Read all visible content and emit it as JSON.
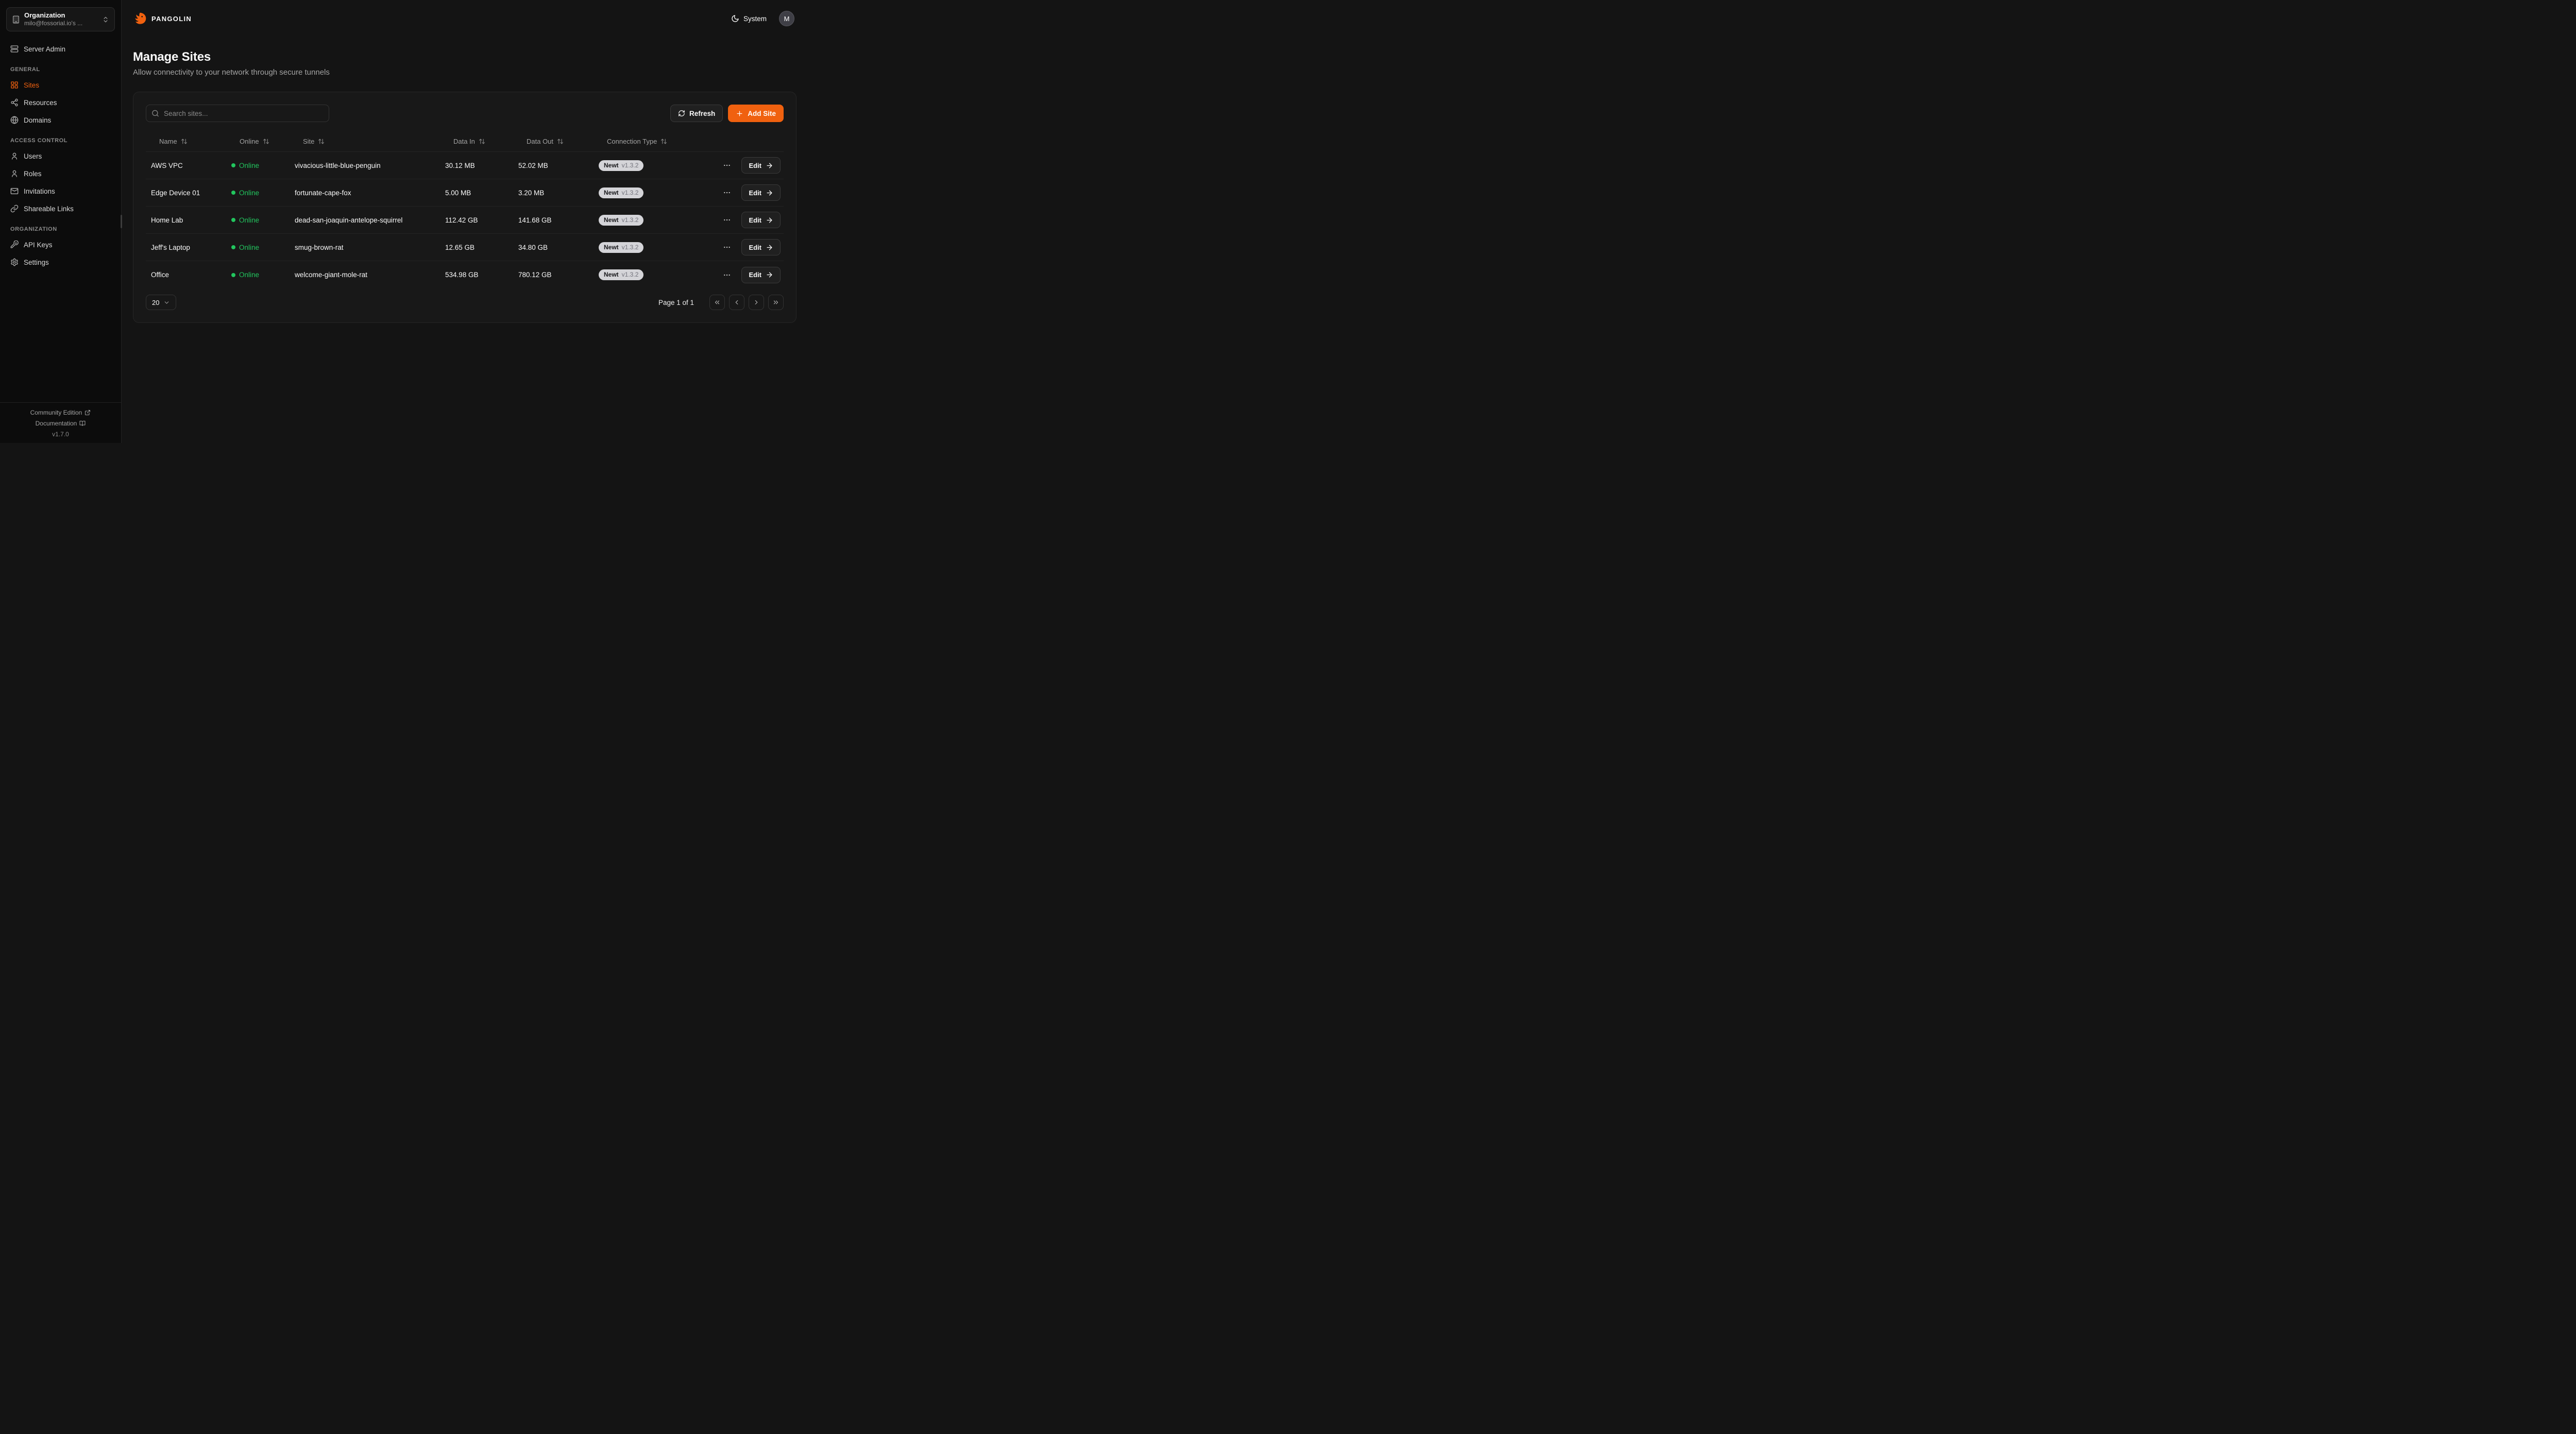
{
  "colors": {
    "accent": "#f0610f",
    "online": "#22c55e"
  },
  "brand": {
    "name": "PANGOLIN"
  },
  "sidebar": {
    "org": {
      "title": "Organization",
      "subtitle": "milo@fossorial.io's ..."
    },
    "sections": [
      {
        "label": "",
        "items": [
          {
            "label": "Server Admin",
            "icon": "server",
            "active": false
          }
        ]
      },
      {
        "label": "GENERAL",
        "items": [
          {
            "label": "Sites",
            "icon": "grid",
            "active": true
          },
          {
            "label": "Resources",
            "icon": "waypoints",
            "active": false
          },
          {
            "label": "Domains",
            "icon": "globe",
            "active": false
          }
        ]
      },
      {
        "label": "ACCESS CONTROL",
        "items": [
          {
            "label": "Users",
            "icon": "user",
            "active": false
          },
          {
            "label": "Roles",
            "icon": "user",
            "active": false
          },
          {
            "label": "Invitations",
            "icon": "mail",
            "active": false
          },
          {
            "label": "Shareable Links",
            "icon": "link",
            "active": false
          }
        ]
      },
      {
        "label": "ORGANIZATION",
        "items": [
          {
            "label": "API Keys",
            "icon": "key",
            "active": false
          },
          {
            "label": "Settings",
            "icon": "settings",
            "active": false
          }
        ]
      }
    ],
    "footer": {
      "community_label": "Community Edition",
      "docs_label": "Documentation",
      "version": "v1.7.0"
    }
  },
  "topbar": {
    "theme_label": "System",
    "avatar_initial": "M"
  },
  "page": {
    "title": "Manage Sites",
    "subtitle": "Allow connectivity to your network through secure tunnels"
  },
  "toolbar": {
    "search_placeholder": "Search sites...",
    "refresh_label": "Refresh",
    "add_site_label": "Add Site"
  },
  "table": {
    "columns": [
      "Name",
      "Online",
      "Site",
      "Data In",
      "Data Out",
      "Connection Type"
    ],
    "rows": [
      {
        "name": "AWS VPC",
        "status": "Online",
        "site": "vivacious-little-blue-penguin",
        "data_in": "30.12 MB",
        "data_out": "52.02 MB",
        "conn_name": "Newt",
        "conn_version": "v1.3.2",
        "edit_label": "Edit"
      },
      {
        "name": "Edge Device 01",
        "status": "Online",
        "site": "fortunate-cape-fox",
        "data_in": "5.00 MB",
        "data_out": "3.20 MB",
        "conn_name": "Newt",
        "conn_version": "v1.3.2",
        "edit_label": "Edit"
      },
      {
        "name": "Home Lab",
        "status": "Online",
        "site": "dead-san-joaquin-antelope-squirrel",
        "data_in": "112.42 GB",
        "data_out": "141.68 GB",
        "conn_name": "Newt",
        "conn_version": "v1.3.2",
        "edit_label": "Edit"
      },
      {
        "name": "Jeff's Laptop",
        "status": "Online",
        "site": "smug-brown-rat",
        "data_in": "12.65 GB",
        "data_out": "34.80 GB",
        "conn_name": "Newt",
        "conn_version": "v1.3.2",
        "edit_label": "Edit"
      },
      {
        "name": "Office",
        "status": "Online",
        "site": "welcome-giant-mole-rat",
        "data_in": "534.98 GB",
        "data_out": "780.12 GB",
        "conn_name": "Newt",
        "conn_version": "v1.3.2",
        "edit_label": "Edit"
      }
    ]
  },
  "pagination": {
    "page_size": "20",
    "page_label": "Page 1 of 1"
  }
}
